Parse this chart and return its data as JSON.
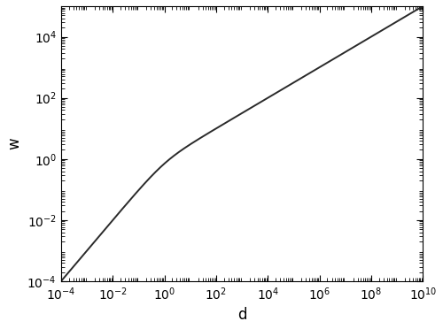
{
  "xlabel": "d",
  "ylabel": "w",
  "xlim_log": [
    -4,
    10
  ],
  "ylim_log": [
    -4,
    5
  ],
  "line_color": "#2a2a2a",
  "line_width": 1.4,
  "background_color": "#ffffff",
  "d0": 1.0,
  "xticks": [
    -4,
    -2,
    0,
    2,
    4,
    6,
    8,
    10
  ],
  "yticks": [
    -4,
    -2,
    0,
    2,
    4
  ],
  "figsize": [
    5.0,
    3.72
  ],
  "dpi": 100
}
